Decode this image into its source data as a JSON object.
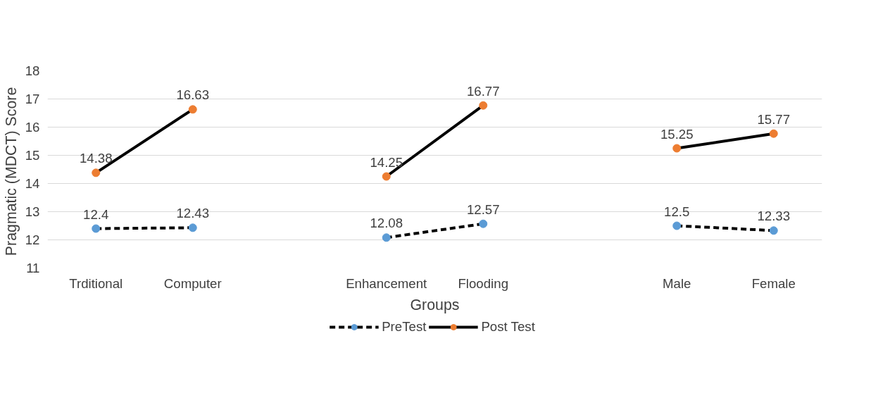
{
  "chart_data": {
    "type": "line",
    "xlabel": "Groups",
    "ylabel": "Pragmatic  (MDCT) Score",
    "categories": [
      "Trditional",
      "Computer",
      null,
      "Enhancement",
      "Flooding",
      null,
      "Male",
      "Female"
    ],
    "series": [
      {
        "name": "PreTest",
        "color": "#5b9bd5",
        "line_style": "dashed",
        "values": [
          12.4,
          12.43,
          null,
          12.08,
          12.57,
          null,
          12.5,
          12.33
        ]
      },
      {
        "name": "Post Test",
        "color": "#ed7d31",
        "line_style": "solid",
        "values": [
          14.38,
          16.63,
          null,
          14.25,
          16.77,
          null,
          15.25,
          15.77
        ]
      }
    ],
    "ylim": [
      11,
      18
    ],
    "yticks": [
      11,
      12,
      13,
      14,
      15,
      16,
      17,
      18
    ],
    "grid": "y",
    "legend": "bottom",
    "marker": "circle",
    "data_labels": true
  }
}
